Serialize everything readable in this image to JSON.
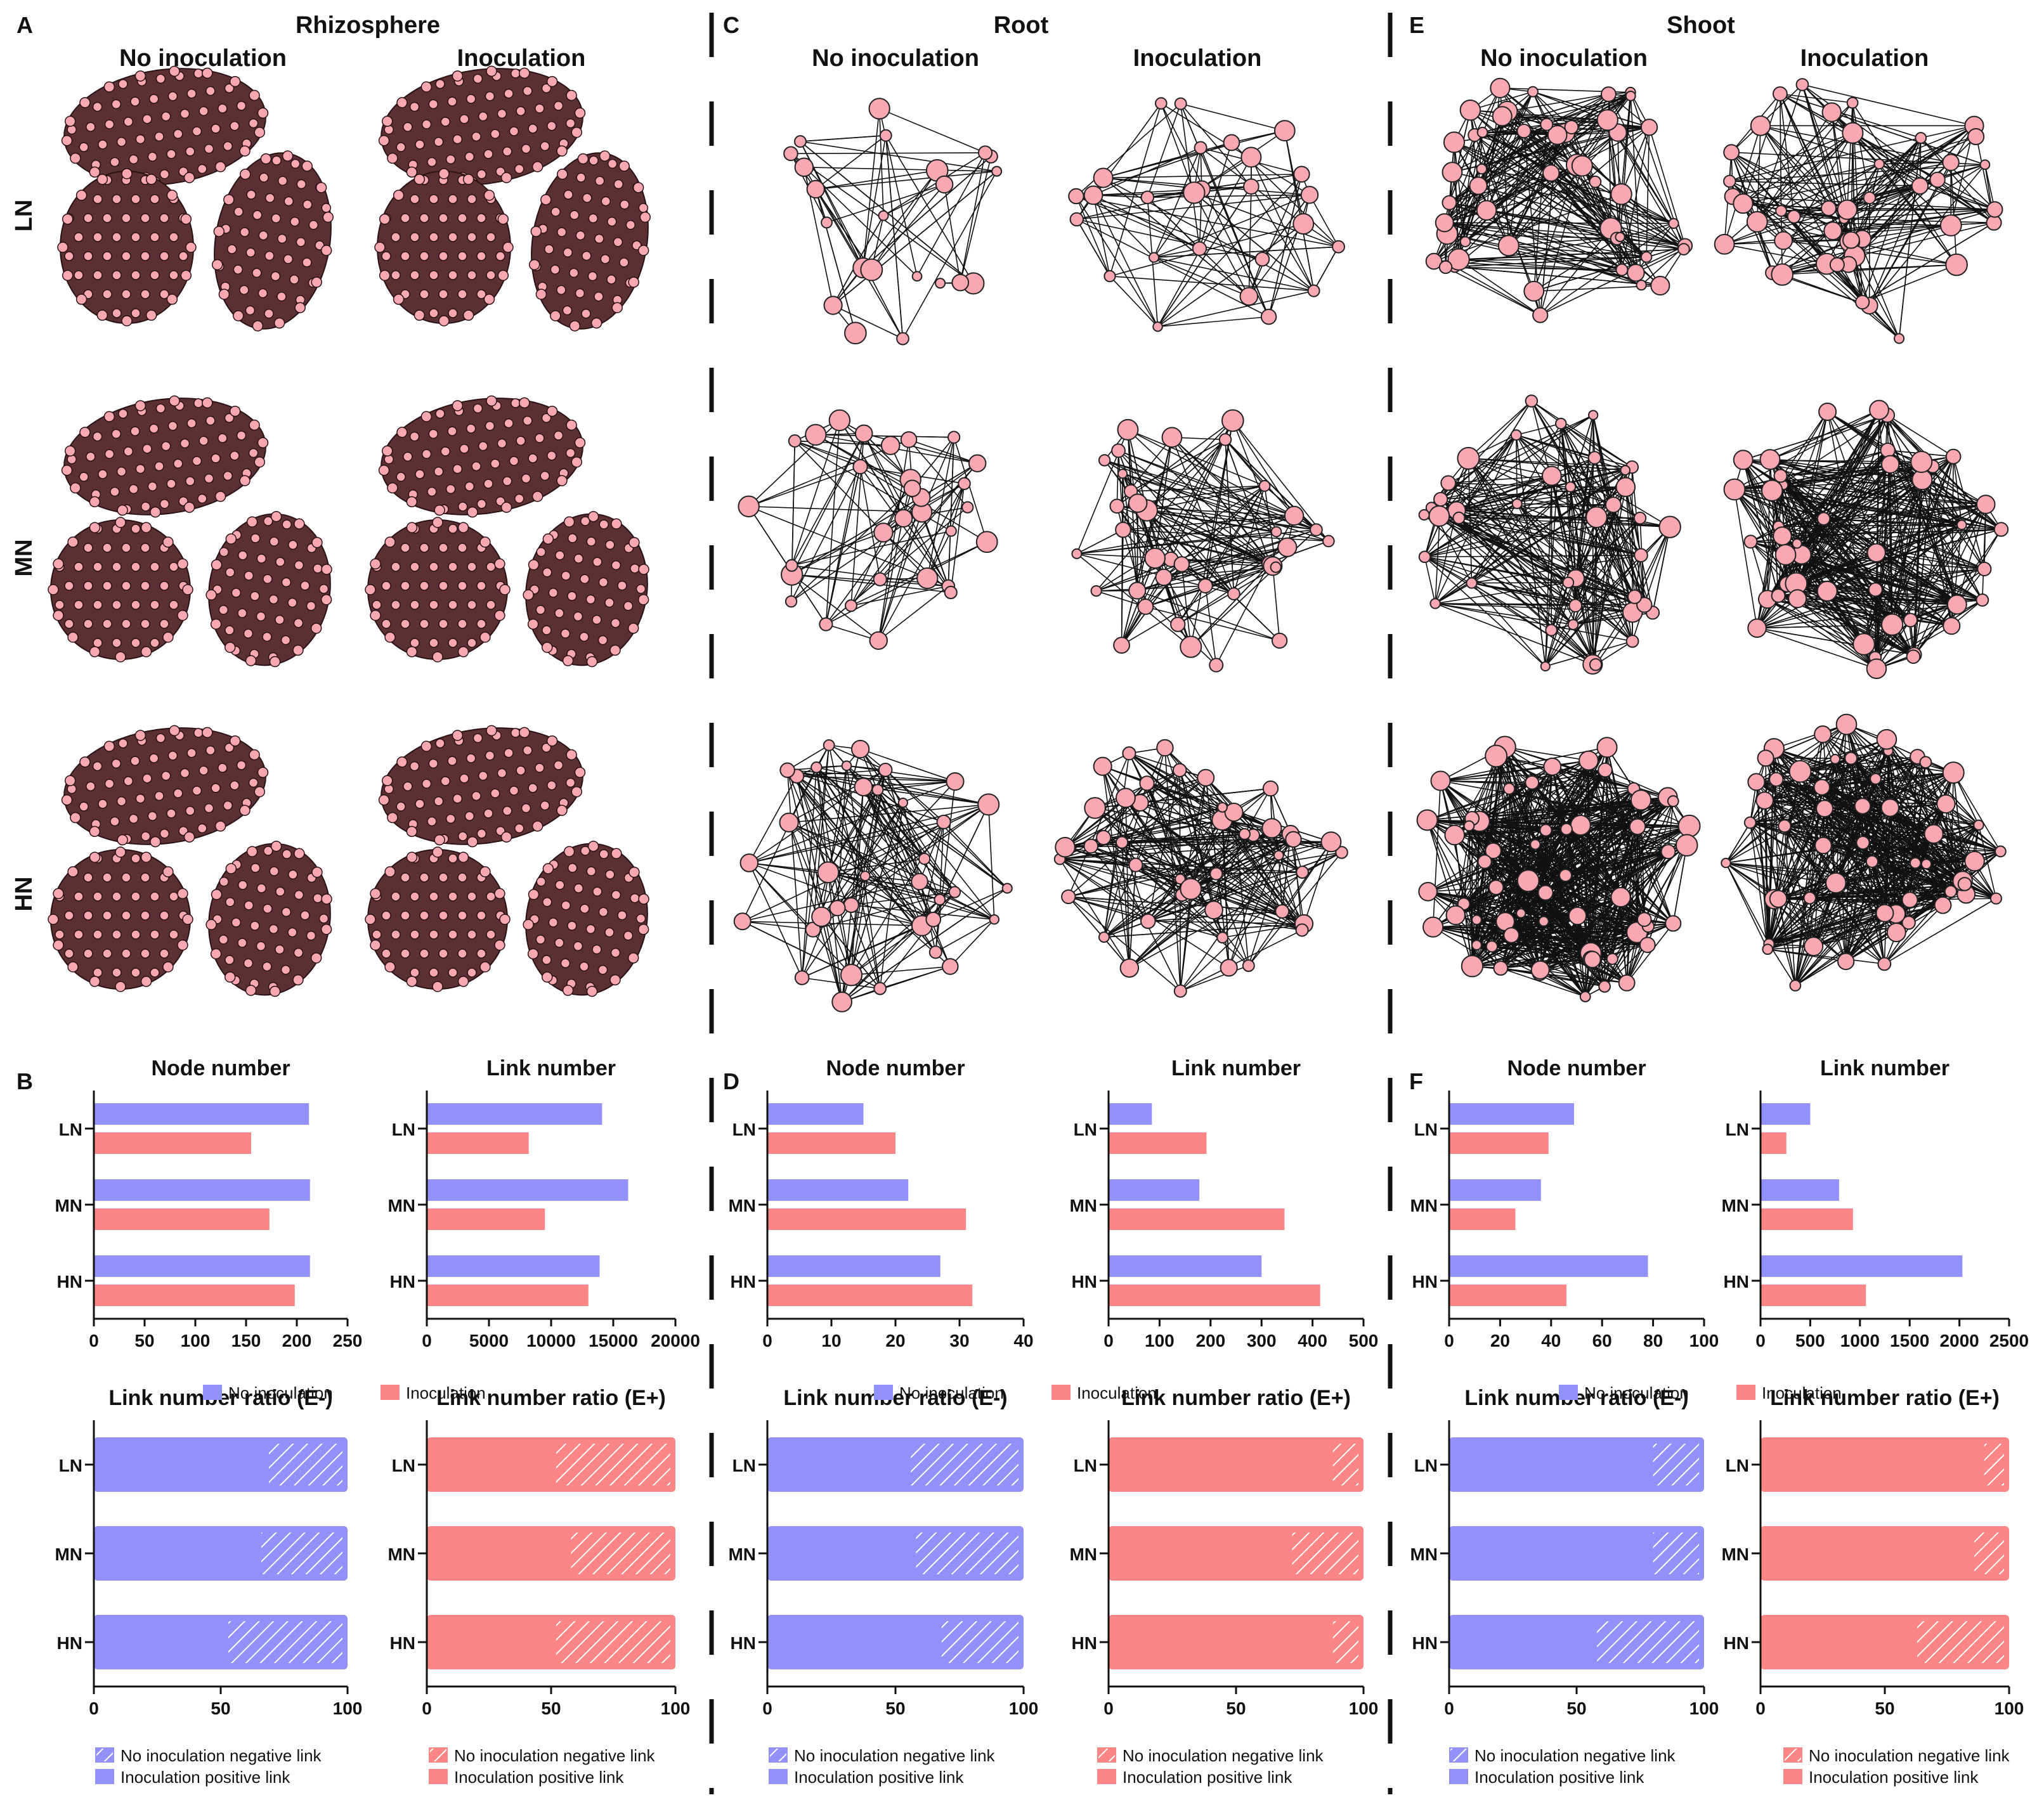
{
  "colors": {
    "no_inoc": "#9191f9",
    "inoc": "#fc8686",
    "node_fill": "#f9a8b2",
    "rhizo_fill": "#5a3035"
  },
  "panels": {
    "A": {
      "letter": "A",
      "title": "Rhizosphere"
    },
    "C": {
      "letter": "C",
      "title": "Root"
    },
    "E": {
      "letter": "E",
      "title": "Shoot"
    },
    "B": {
      "letter": "B"
    },
    "D": {
      "letter": "D"
    },
    "F": {
      "letter": "F"
    }
  },
  "sublabels": {
    "no_inoc": "No inoculation",
    "inoc": "Inoculation"
  },
  "row_labels": [
    "LN",
    "MN",
    "HN"
  ],
  "legend": {
    "no_inoc": "No inoculation",
    "inoc": "Inoculation",
    "neg_no_inoc": "No inoculation negative link",
    "pos_inoc": "Inoculation positive link"
  },
  "chart_data": [
    {
      "id": "B-node",
      "type": "bar",
      "title": "Node number",
      "categories": [
        "LN",
        "MN",
        "HN"
      ],
      "series": [
        {
          "name": "No inoculation",
          "values": [
            212,
            213,
            213
          ]
        },
        {
          "name": "Inoculation",
          "values": [
            155,
            173,
            198
          ]
        }
      ],
      "xlim": [
        0,
        250
      ],
      "xticks": [
        0,
        50,
        100,
        150,
        200,
        250
      ]
    },
    {
      "id": "B-link",
      "type": "bar",
      "title": "Link number",
      "categories": [
        "LN",
        "MN",
        "HN"
      ],
      "series": [
        {
          "name": "No inoculation",
          "values": [
            14100,
            16200,
            13900
          ]
        },
        {
          "name": "Inoculation",
          "values": [
            8200,
            9500,
            13000
          ]
        }
      ],
      "xlim": [
        0,
        20000
      ],
      "xticks": [
        0,
        5000,
        10000,
        15000,
        20000
      ]
    },
    {
      "id": "D-node",
      "type": "bar",
      "title": "Node number",
      "categories": [
        "LN",
        "MN",
        "HN"
      ],
      "series": [
        {
          "name": "No inoculation",
          "values": [
            15,
            22,
            27
          ]
        },
        {
          "name": "Inoculation",
          "values": [
            20,
            31,
            32
          ]
        }
      ],
      "xlim": [
        0,
        40
      ],
      "xticks": [
        0,
        10,
        20,
        30,
        40
      ]
    },
    {
      "id": "D-link",
      "type": "bar",
      "title": "Link number",
      "categories": [
        "LN",
        "MN",
        "HN"
      ],
      "series": [
        {
          "name": "No inoculation",
          "values": [
            85,
            178,
            300
          ]
        },
        {
          "name": "Inoculation",
          "values": [
            192,
            345,
            415
          ]
        }
      ],
      "xlim": [
        0,
        500
      ],
      "xticks": [
        0,
        100,
        200,
        300,
        400,
        500
      ]
    },
    {
      "id": "F-node",
      "type": "bar",
      "title": "Node number",
      "categories": [
        "LN",
        "MN",
        "HN"
      ],
      "series": [
        {
          "name": "No inoculation",
          "values": [
            49,
            36,
            78
          ]
        },
        {
          "name": "Inoculation",
          "values": [
            39,
            26,
            46
          ]
        }
      ],
      "xlim": [
        0,
        100
      ],
      "xticks": [
        0,
        20,
        40,
        60,
        80,
        100
      ]
    },
    {
      "id": "F-link",
      "type": "bar",
      "title": "Link number",
      "categories": [
        "LN",
        "MN",
        "HN"
      ],
      "series": [
        {
          "name": "No inoculation",
          "values": [
            500,
            790,
            2030
          ]
        },
        {
          "name": "Inoculation",
          "values": [
            260,
            930,
            1060
          ]
        }
      ],
      "xlim": [
        0,
        2500
      ],
      "xticks": [
        0,
        500,
        1000,
        1500,
        2000,
        2500
      ]
    },
    {
      "id": "B-ratio-neg",
      "type": "stacked-bar",
      "title": "Link number ratio (E-)",
      "categories": [
        "LN",
        "MN",
        "HN"
      ],
      "positive": [
        69,
        66,
        53
      ],
      "negative": [
        31,
        34,
        47
      ],
      "xlim": [
        0,
        100
      ],
      "xticks": [
        0,
        50,
        100
      ]
    },
    {
      "id": "B-ratio-pos",
      "type": "stacked-bar",
      "title": "Link number ratio (E+)",
      "categories": [
        "LN",
        "MN",
        "HN"
      ],
      "positive": [
        52,
        58,
        52
      ],
      "negative": [
        48,
        42,
        48
      ],
      "xlim": [
        0,
        100
      ],
      "xticks": [
        0,
        50,
        100
      ]
    },
    {
      "id": "D-ratio-neg",
      "type": "stacked-bar",
      "title": "Link number ratio (E-)",
      "categories": [
        "LN",
        "MN",
        "HN"
      ],
      "positive": [
        56,
        58,
        68
      ],
      "negative": [
        44,
        42,
        32
      ],
      "xlim": [
        0,
        100
      ],
      "xticks": [
        0,
        50,
        100
      ]
    },
    {
      "id": "D-ratio-pos",
      "type": "stacked-bar",
      "title": "Link number ratio (E+)",
      "categories": [
        "LN",
        "MN",
        "HN"
      ],
      "positive": [
        88,
        72,
        88
      ],
      "negative": [
        12,
        28,
        12
      ],
      "xlim": [
        0,
        100
      ],
      "xticks": [
        0,
        50,
        100
      ]
    },
    {
      "id": "F-ratio-neg",
      "type": "stacked-bar",
      "title": "Link number ratio (E-)",
      "categories": [
        "LN",
        "MN",
        "HN"
      ],
      "positive": [
        80,
        80,
        58
      ],
      "negative": [
        20,
        20,
        42
      ],
      "xlim": [
        0,
        100
      ],
      "xticks": [
        0,
        50,
        100
      ]
    },
    {
      "id": "F-ratio-pos",
      "type": "stacked-bar",
      "title": "Link number ratio (E+)",
      "categories": [
        "LN",
        "MN",
        "HN"
      ],
      "positive": [
        90,
        86,
        63
      ],
      "negative": [
        10,
        14,
        37
      ],
      "xlim": [
        0,
        100
      ],
      "xticks": [
        0,
        50,
        100
      ]
    }
  ]
}
